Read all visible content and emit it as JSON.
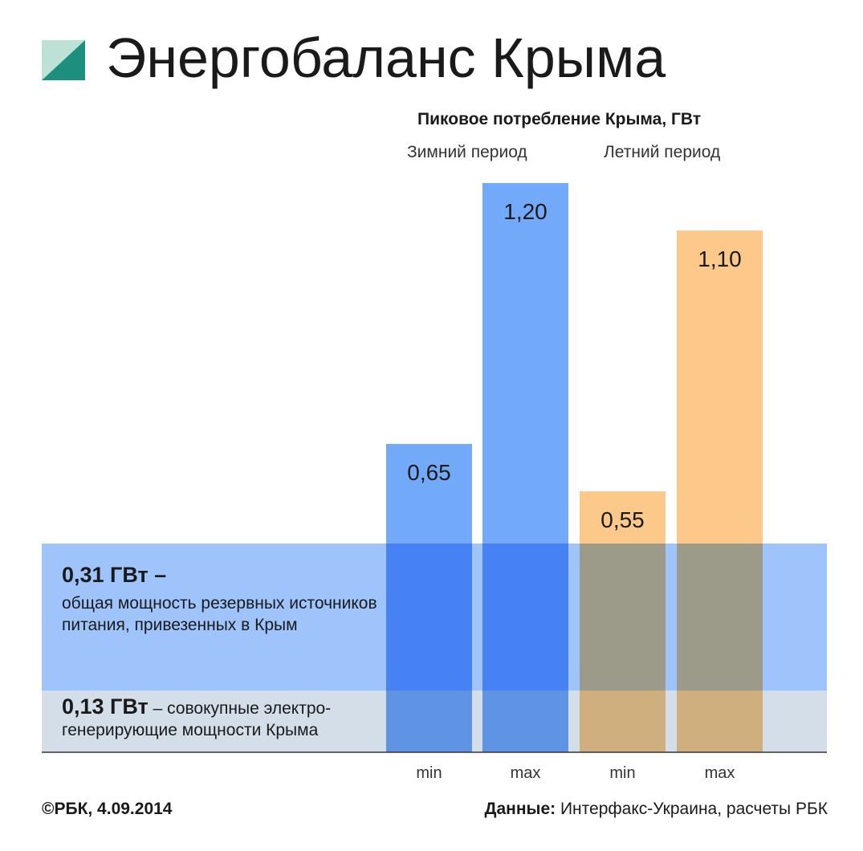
{
  "header": {
    "title": "Энергобаланс Крыма",
    "subtitle": "Пиковое потребление Крыма, ГВт"
  },
  "colors": {
    "winter_bar": "#73a9f9",
    "summer_bar": "#fcc98a",
    "reserve_band": "#4f93f7",
    "local_band": "#d3dee9",
    "axis": "#333333",
    "logo_teal": "#1c8f7f",
    "logo_light": "#bde2d5"
  },
  "chart_data": {
    "type": "bar",
    "groups": [
      "Зимний период",
      "Летний период"
    ],
    "categories": [
      "min",
      "max",
      "min",
      "max"
    ],
    "values": [
      0.65,
      1.2,
      0.55,
      1.1
    ],
    "value_labels": [
      "0,65",
      "1,20",
      "0,55",
      "1,10"
    ],
    "group_of_bar": [
      0,
      0,
      1,
      1
    ],
    "ylim": [
      0,
      1.2
    ],
    "grid": false,
    "reference_bands": [
      {
        "value": 0.31,
        "label_value": "0,31 ГВт –",
        "label_text": "общая мощность резервных источников питания, привезенных в Крым"
      },
      {
        "value": 0.13,
        "label_value": "0,13 ГВт",
        "label_text": " – совокупные электро-генерирующие мощности Крыма"
      }
    ]
  },
  "footer": {
    "copyright": "©РБК, 4.09.2014",
    "source_label": "Данные:",
    "source_text": " Интерфакс-Украина, расчеты РБК"
  }
}
